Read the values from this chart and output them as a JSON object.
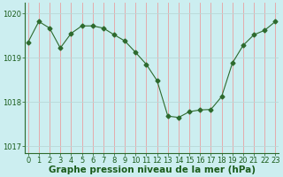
{
  "x": [
    0,
    1,
    2,
    3,
    4,
    5,
    6,
    7,
    8,
    9,
    10,
    11,
    12,
    13,
    14,
    15,
    16,
    17,
    18,
    19,
    20,
    21,
    22,
    23
  ],
  "y": [
    1019.35,
    1019.82,
    1019.67,
    1019.22,
    1019.55,
    1019.72,
    1019.72,
    1019.67,
    1019.52,
    1019.38,
    1019.12,
    1018.85,
    1018.48,
    1017.68,
    1017.65,
    1017.78,
    1017.82,
    1017.83,
    1018.12,
    1018.88,
    1019.28,
    1019.52,
    1019.62,
    1019.82
  ],
  "line_color": "#2d6a2d",
  "marker": "D",
  "marker_size": 2.5,
  "bg_color": "#cceef0",
  "vgrid_color": "#e8a0a0",
  "hgrid_color": "#b8d8d8",
  "xlabel": "Graphe pression niveau de la mer (hPa)",
  "xlabel_color": "#1a5c1a",
  "xlabel_fontsize": 7.5,
  "tick_color": "#1a5c1a",
  "tick_fontsize": 6,
  "ylim": [
    1016.85,
    1020.25
  ],
  "yticks": [
    1017,
    1018,
    1019,
    1020
  ],
  "xticks": [
    0,
    1,
    2,
    3,
    4,
    5,
    6,
    7,
    8,
    9,
    10,
    11,
    12,
    13,
    14,
    15,
    16,
    17,
    18,
    19,
    20,
    21,
    22,
    23
  ],
  "spine_color": "#2d6a2d"
}
